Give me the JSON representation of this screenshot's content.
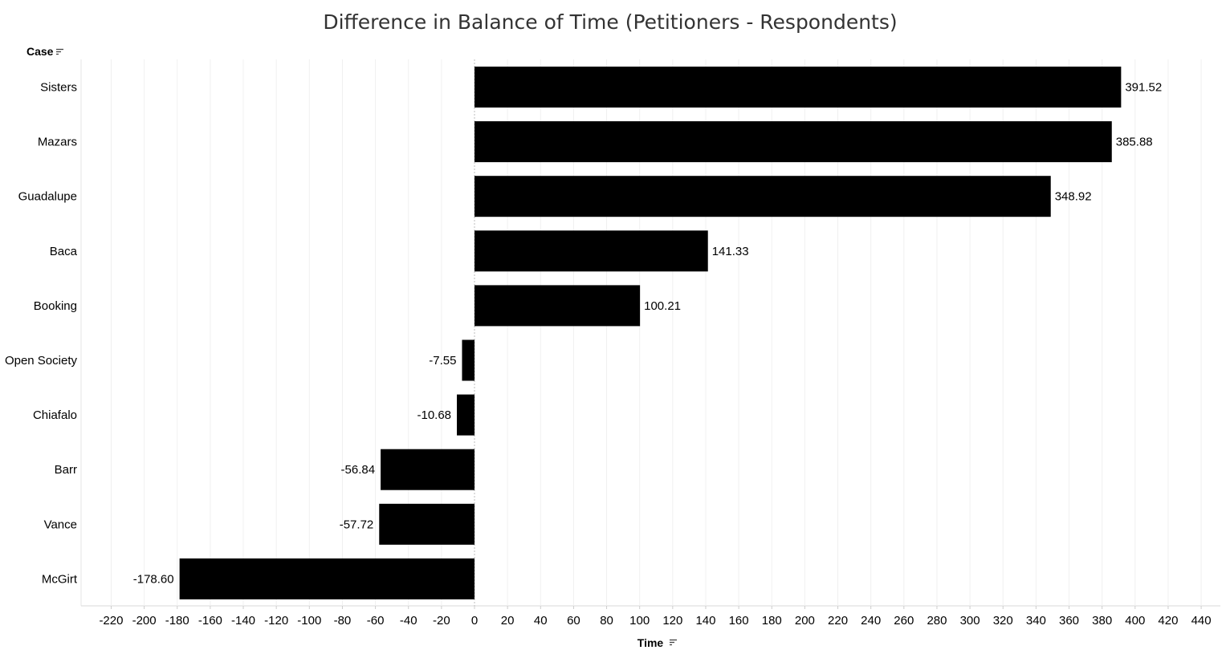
{
  "chart_data": {
    "type": "bar",
    "orientation": "horizontal",
    "title": "Difference in Balance of Time  (Petitioners - Respondents)",
    "row_header": "Case",
    "xlabel": "Time",
    "categories": [
      "Sisters",
      "Mazars",
      "Guadalupe",
      "Baca",
      "Booking",
      "Open Society",
      "Chiafalo",
      "Barr",
      "Vance",
      "McGirt"
    ],
    "values": [
      391.52,
      385.88,
      348.92,
      141.33,
      100.21,
      -7.55,
      -10.68,
      -56.84,
      -57.72,
      -178.6
    ],
    "value_labels": [
      "391.52",
      "385.88",
      "348.92",
      "141.33",
      "100.21",
      "-7.55",
      "-10.68",
      "-56.84",
      "-57.72",
      "-178.60"
    ],
    "xlim": [
      -220,
      440
    ],
    "xticks": [
      -220,
      -200,
      -180,
      -160,
      -140,
      -120,
      -100,
      -80,
      -60,
      -40,
      -20,
      0,
      20,
      40,
      60,
      80,
      100,
      120,
      140,
      160,
      180,
      200,
      220,
      240,
      260,
      280,
      300,
      320,
      340,
      360,
      380,
      400,
      420,
      440
    ],
    "bar_color": "#000000",
    "grid": "vertical",
    "legend": "none"
  },
  "icons": {
    "row_header_sort": "sort-descending-icon",
    "axis_sort": "sort-descending-icon"
  }
}
